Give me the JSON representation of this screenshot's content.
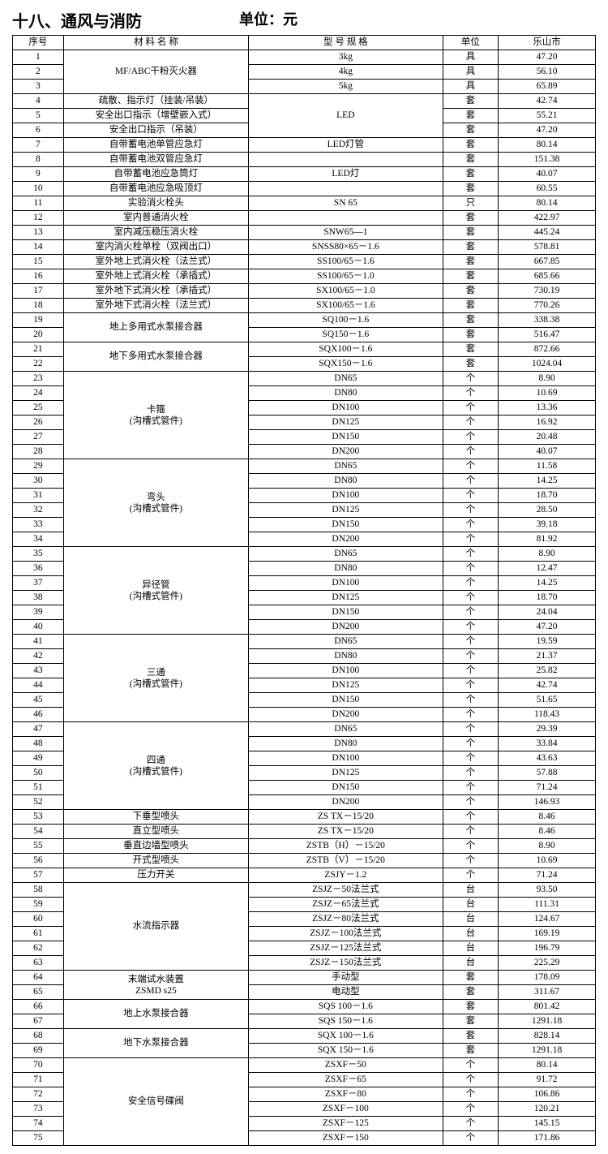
{
  "header": {
    "title": "十八、通风与消防",
    "unit_label": "单位：元"
  },
  "columns": {
    "seq": "序号",
    "name": "材 料 名 称",
    "spec": "型 号 规 格",
    "unit": "单位",
    "price": "乐山市"
  },
  "rows": [
    {
      "seq": "1",
      "name": "MF/ABC干粉灭火器",
      "name_rowspan": 3,
      "spec": "3kg",
      "unit": "具",
      "price": "47.20"
    },
    {
      "seq": "2",
      "spec": "4kg",
      "unit": "具",
      "price": "56.10"
    },
    {
      "seq": "3",
      "spec": "5kg",
      "unit": "具",
      "price": "65.89"
    },
    {
      "seq": "4",
      "name": "疏散、指示灯（挂装/吊装）",
      "spec": "LED",
      "spec_rowspan": 3,
      "unit": "套",
      "price": "42.74"
    },
    {
      "seq": "5",
      "name": "安全出口指示（增壁嵌入式）",
      "unit": "套",
      "price": "55.21"
    },
    {
      "seq": "6",
      "name": "安全出口指示（吊装）",
      "unit": "套",
      "price": "47.20"
    },
    {
      "seq": "7",
      "name": "自带蓄电池单管应急灯",
      "spec": "LED灯管",
      "unit": "套",
      "price": "80.14"
    },
    {
      "seq": "8",
      "name": "自带蓄电池双管应急灯",
      "spec": "",
      "unit": "套",
      "price": "151.38"
    },
    {
      "seq": "9",
      "name": "自带蓄电池应急筒灯",
      "spec": "LED灯",
      "unit": "套",
      "price": "40.07"
    },
    {
      "seq": "10",
      "name": "自带蓄电池应急吸顶灯",
      "spec": "",
      "unit": "套",
      "price": "60.55"
    },
    {
      "seq": "11",
      "name": "实验消火栓头",
      "spec": "SN 65",
      "unit": "只",
      "price": "80.14"
    },
    {
      "seq": "12",
      "name": "室内普通消火栓",
      "spec": "",
      "unit": "套",
      "price": "422.97"
    },
    {
      "seq": "13",
      "name": "室内减压稳压消火栓",
      "spec": "SNW65—1",
      "unit": "套",
      "price": "445.24"
    },
    {
      "seq": "14",
      "name": "室内消火栓单栓（双阀出口）",
      "spec": "SNSS80×65－1.6",
      "unit": "套",
      "price": "578.81"
    },
    {
      "seq": "15",
      "name": "室外地上式消火栓（法兰式）",
      "spec": "SS100/65－1.6",
      "unit": "套",
      "price": "667.85"
    },
    {
      "seq": "16",
      "name": "室外地上式消火栓（承插式）",
      "spec": "SS100/65－1.0",
      "unit": "套",
      "price": "685.66"
    },
    {
      "seq": "17",
      "name": "室外地下式消火栓（承插式）",
      "spec": "SX100/65－1.0",
      "unit": "套",
      "price": "730.19"
    },
    {
      "seq": "18",
      "name": "室外地下式消火栓（法兰式）",
      "spec": "SX100/65－1.6",
      "unit": "套",
      "price": "770.26"
    },
    {
      "seq": "19",
      "name": "地上多用式水泵接合器",
      "name_rowspan": 2,
      "spec": "SQ100－1.6",
      "unit": "套",
      "price": "338.38"
    },
    {
      "seq": "20",
      "spec": "SQ150－1.6",
      "unit": "套",
      "price": "516.47"
    },
    {
      "seq": "21",
      "name": "地下多用式水泵接合器",
      "name_rowspan": 2,
      "spec": "SQX100－1.6",
      "unit": "套",
      "price": "872.66"
    },
    {
      "seq": "22",
      "spec": "SQX150－1.6",
      "unit": "套",
      "price": "1024.04"
    },
    {
      "seq": "23",
      "name": "卡箍<br>(沟槽式管件)",
      "name_rowspan": 6,
      "spec": "DN65",
      "unit": "个",
      "price": "8.90"
    },
    {
      "seq": "24",
      "spec": "DN80",
      "unit": "个",
      "price": "10.69"
    },
    {
      "seq": "25",
      "spec": "DN100",
      "unit": "个",
      "price": "13.36"
    },
    {
      "seq": "26",
      "spec": "DN125",
      "unit": "个",
      "price": "16.92"
    },
    {
      "seq": "27",
      "spec": "DN150",
      "unit": "个",
      "price": "20.48"
    },
    {
      "seq": "28",
      "spec": "DN200",
      "unit": "个",
      "price": "40.07"
    },
    {
      "seq": "29",
      "name": "弯头<br>(沟槽式管件)",
      "name_rowspan": 6,
      "spec": "DN65",
      "unit": "个",
      "price": "11.58"
    },
    {
      "seq": "30",
      "spec": "DN80",
      "unit": "个",
      "price": "14.25"
    },
    {
      "seq": "31",
      "spec": "DN100",
      "unit": "个",
      "price": "18.70"
    },
    {
      "seq": "32",
      "spec": "DN125",
      "unit": "个",
      "price": "28.50"
    },
    {
      "seq": "33",
      "spec": "DN150",
      "unit": "个",
      "price": "39.18"
    },
    {
      "seq": "34",
      "spec": "DN200",
      "unit": "个",
      "price": "81.92"
    },
    {
      "seq": "35",
      "name": "异径管<br>(沟槽式管件)",
      "name_rowspan": 6,
      "spec": "DN65",
      "unit": "个",
      "price": "8.90"
    },
    {
      "seq": "36",
      "spec": "DN80",
      "unit": "个",
      "price": "12.47"
    },
    {
      "seq": "37",
      "spec": "DN100",
      "unit": "个",
      "price": "14.25"
    },
    {
      "seq": "38",
      "spec": "DN125",
      "unit": "个",
      "price": "18.70"
    },
    {
      "seq": "39",
      "spec": "DN150",
      "unit": "个",
      "price": "24.04"
    },
    {
      "seq": "40",
      "spec": "DN200",
      "unit": "个",
      "price": "47.20"
    },
    {
      "seq": "41",
      "name": "三通<br>(沟槽式管件)",
      "name_rowspan": 6,
      "spec": "DN65",
      "unit": "个",
      "price": "19.59"
    },
    {
      "seq": "42",
      "spec": "DN80",
      "unit": "个",
      "price": "21.37"
    },
    {
      "seq": "43",
      "spec": "DN100",
      "unit": "个",
      "price": "25.82"
    },
    {
      "seq": "44",
      "spec": "DN125",
      "unit": "个",
      "price": "42.74"
    },
    {
      "seq": "45",
      "spec": "DN150",
      "unit": "个",
      "price": "51.65"
    },
    {
      "seq": "46",
      "spec": "DN200",
      "unit": "个",
      "price": "118.43"
    },
    {
      "seq": "47",
      "name": "四通<br>(沟槽式管件)",
      "name_rowspan": 6,
      "spec": "DN65",
      "unit": "个",
      "price": "29.39"
    },
    {
      "seq": "48",
      "spec": "DN80",
      "unit": "个",
      "price": "33.84"
    },
    {
      "seq": "49",
      "spec": "DN100",
      "unit": "个",
      "price": "43.63"
    },
    {
      "seq": "50",
      "spec": "DN125",
      "unit": "个",
      "price": "57.88"
    },
    {
      "seq": "51",
      "spec": "DN150",
      "unit": "个",
      "price": "71.24"
    },
    {
      "seq": "52",
      "spec": "DN200",
      "unit": "个",
      "price": "146.93"
    },
    {
      "seq": "53",
      "name": "下垂型喷头",
      "spec": "ZS TX－15/20",
      "unit": "个",
      "price": "8.46"
    },
    {
      "seq": "54",
      "name": "直立型喷头",
      "spec": "ZS TX－15/20",
      "unit": "个",
      "price": "8.46"
    },
    {
      "seq": "55",
      "name": "垂直边墙型喷头",
      "spec": "ZSTB（H）－15/20",
      "unit": "个",
      "price": "8.90"
    },
    {
      "seq": "56",
      "name": "开式型喷头",
      "spec": "ZSTB（V）－15/20",
      "unit": "个",
      "price": "10.69"
    },
    {
      "seq": "57",
      "name": "压力开关",
      "spec": "ZSJY－1.2",
      "unit": "个",
      "price": "71.24"
    },
    {
      "seq": "58",
      "name": "水流指示器",
      "name_rowspan": 6,
      "spec": "ZSJZ－50法兰式",
      "unit": "台",
      "price": "93.50"
    },
    {
      "seq": "59",
      "spec": "ZSJZ－65法兰式",
      "unit": "台",
      "price": "111.31"
    },
    {
      "seq": "60",
      "spec": "ZSJZ－80法兰式",
      "unit": "台",
      "price": "124.67"
    },
    {
      "seq": "61",
      "spec": "ZSJZ－100法兰式",
      "unit": "台",
      "price": "169.19"
    },
    {
      "seq": "62",
      "spec": "ZSJZ－125法兰式",
      "unit": "台",
      "price": "196.79"
    },
    {
      "seq": "63",
      "spec": "ZSJZ－150法兰式",
      "unit": "台",
      "price": "225.29"
    },
    {
      "seq": "64",
      "name": "末端试水装置<br>ZSMD s25",
      "name_rowspan": 2,
      "spec": "手动型",
      "unit": "套",
      "price": "178.09"
    },
    {
      "seq": "65",
      "spec": "电动型",
      "unit": "套",
      "price": "311.67"
    },
    {
      "seq": "66",
      "name": "地上水泵接合器",
      "name_rowspan": 2,
      "spec": "SQS 100－1.6",
      "unit": "套",
      "price": "801.42"
    },
    {
      "seq": "67",
      "spec": "SQS 150－1.6",
      "unit": "套",
      "price": "1291.18"
    },
    {
      "seq": "68",
      "name": "地下水泵接合器",
      "name_rowspan": 2,
      "spec": "SQX 100－1.6",
      "unit": "套",
      "price": "828.14"
    },
    {
      "seq": "69",
      "spec": "SQX 150－1.6",
      "unit": "套",
      "price": "1291.18"
    },
    {
      "seq": "70",
      "name": "安全信号碟阀",
      "name_rowspan": 6,
      "spec": "ZSXF－50",
      "unit": "个",
      "price": "80.14"
    },
    {
      "seq": "71",
      "spec": "ZSXF－65",
      "unit": "个",
      "price": "91.72"
    },
    {
      "seq": "72",
      "spec": "ZSXF－80",
      "unit": "个",
      "price": "106.86"
    },
    {
      "seq": "73",
      "spec": "ZSXF－100",
      "unit": "个",
      "price": "120.21"
    },
    {
      "seq": "74",
      "spec": "ZSXF－125",
      "unit": "个",
      "price": "145.15"
    },
    {
      "seq": "75",
      "spec": "ZSXF－150",
      "unit": "个",
      "price": "171.86"
    }
  ]
}
